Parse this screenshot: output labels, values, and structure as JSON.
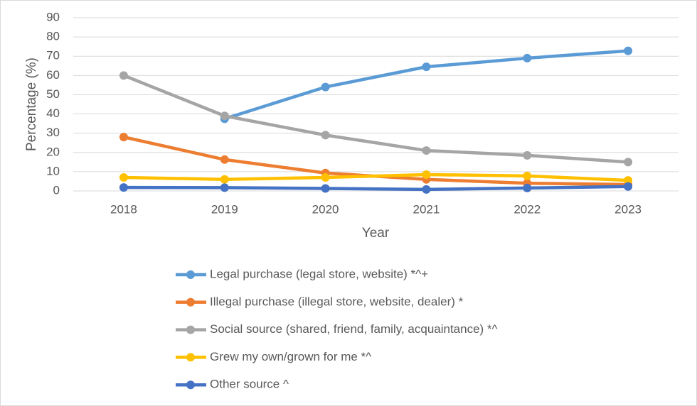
{
  "chart_data": {
    "type": "line",
    "x_label": "Year",
    "y_label": "Percentage (%)",
    "categories": [
      "2018",
      "2019",
      "2020",
      "2021",
      "2022",
      "2023"
    ],
    "series": [
      {
        "name": "Legal purchase (legal store, website) *^+",
        "color": "#5b9bd5",
        "values": [
          null,
          37.5,
          54,
          64.5,
          69,
          72.8
        ]
      },
      {
        "name": "Illegal purchase (illegal store, website, dealer) *",
        "color": "#ed7d31",
        "values": [
          28,
          16.3,
          9.3,
          6,
          4,
          3.3
        ]
      },
      {
        "name": "Social source (shared, friend, family, acquaintance) *^",
        "color": "#a5a5a5",
        "values": [
          60,
          39,
          29,
          21,
          18.5,
          15
        ]
      },
      {
        "name": "Grew my own/grown for me *^",
        "color": "#ffc000",
        "values": [
          7,
          6,
          7,
          8.5,
          7.8,
          5.5
        ]
      },
      {
        "name": "Other source ^",
        "color": "#4472c4",
        "values": [
          1.8,
          1.7,
          1.3,
          0.8,
          1.5,
          2.3
        ]
      }
    ],
    "ylim": [
      0,
      90
    ],
    "yticks": [
      0,
      10,
      20,
      30,
      40,
      50,
      60,
      70,
      80,
      90
    ],
    "grid": true,
    "legend": "bottom"
  }
}
